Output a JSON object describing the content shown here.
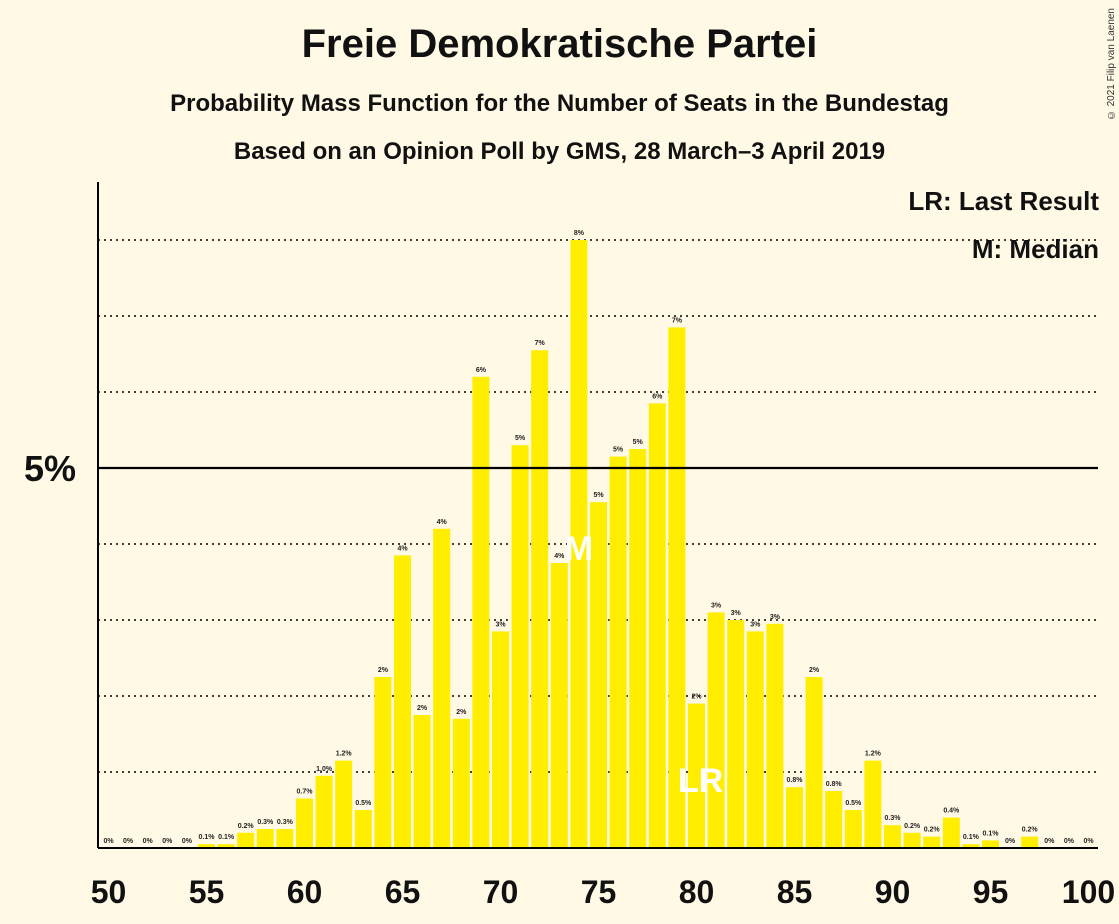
{
  "title": "Freie Demokratische Partei",
  "subtitle1": "Probability Mass Function for the Number of Seats in the Bundestag",
  "subtitle2": "Based on an Opinion Poll by GMS, 28 March–3 April 2019",
  "copyright": "© 2021 Filip van Laenen",
  "legend": {
    "last_result": "LR: Last Result",
    "median": "M: Median"
  },
  "colors": {
    "bar": "#FFEE00",
    "background": "#FFF9E5",
    "axis": "#000000"
  },
  "chart_data": {
    "type": "bar",
    "x": [
      50,
      51,
      52,
      53,
      54,
      55,
      56,
      57,
      58,
      59,
      60,
      61,
      62,
      63,
      64,
      65,
      66,
      67,
      68,
      69,
      70,
      71,
      72,
      73,
      74,
      75,
      76,
      77,
      78,
      79,
      80,
      81,
      82,
      83,
      84,
      85,
      86,
      87,
      88,
      89,
      90,
      91,
      92,
      93,
      94,
      95,
      96,
      97,
      98,
      99,
      100
    ],
    "values": [
      0,
      0,
      0,
      0,
      0,
      0.05,
      0.05,
      0.2,
      0.25,
      0.25,
      0.65,
      0.95,
      1.15,
      0.5,
      2.25,
      3.85,
      1.75,
      4.2,
      1.7,
      6.2,
      2.85,
      5.3,
      6.55,
      3.75,
      8.0,
      4.55,
      5.15,
      5.25,
      5.85,
      6.85,
      1.9,
      3.1,
      3.0,
      2.85,
      2.95,
      0.8,
      2.25,
      0.75,
      0.5,
      1.15,
      0.3,
      0.2,
      0.15,
      0.4,
      0.05,
      0.1,
      0,
      0.15,
      0,
      0,
      0
    ],
    "labels": [
      "0%",
      "0%",
      "0%",
      "0%",
      "0%",
      "0.1%",
      "0.1%",
      "0.2%",
      "0.3%",
      "0.3%",
      "0.7%",
      "1.0%",
      "1.2%",
      "0.5%",
      "2%",
      "4%",
      "2%",
      "4%",
      "2%",
      "6%",
      "3%",
      "5%",
      "7%",
      "4%",
      "8%",
      "5%",
      "5%",
      "5%",
      "6%",
      "7%",
      "2%",
      "3%",
      "3%",
      "3%",
      "3%",
      "0.8%",
      "2%",
      "0.8%",
      "0.5%",
      "1.2%",
      "0.3%",
      "0.2%",
      "0.2%",
      "0.4%",
      "0.1%",
      "0.1%",
      "0%",
      "0.2%",
      "0%",
      "0%",
      "0%"
    ],
    "x_ticks": [
      "50",
      "55",
      "60",
      "65",
      "70",
      "75",
      "80",
      "85",
      "90",
      "95",
      "100"
    ],
    "x_tick_values": [
      50,
      55,
      60,
      65,
      70,
      75,
      80,
      85,
      90,
      95,
      100
    ],
    "y_ticks": [
      "5%"
    ],
    "y_tick_values": [
      5
    ],
    "ylim": [
      0,
      8.75
    ],
    "gridlines": [
      1,
      2,
      3,
      4,
      6,
      7,
      8
    ],
    "median": {
      "x": 74,
      "label": "M"
    },
    "last_result": {
      "x": 80,
      "label": "LR"
    }
  }
}
